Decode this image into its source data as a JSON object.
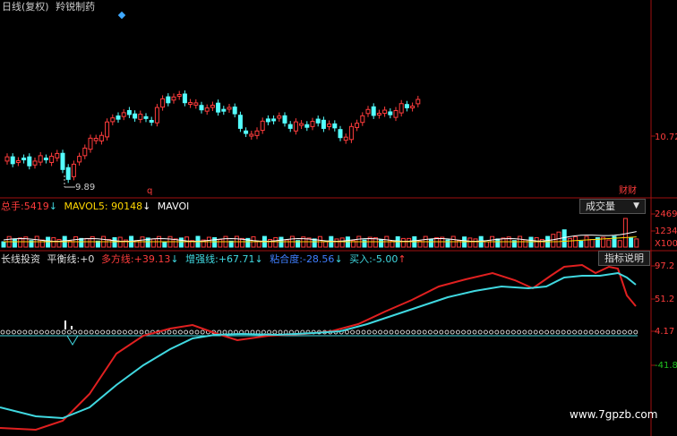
{
  "header": {
    "chart_label": "日线(复权)",
    "stock_name": "羚锐制药"
  },
  "price_panel": {
    "right_label": "10.72",
    "low_annotation": "9.89",
    "marker_q": "q",
    "tag_text": "财财"
  },
  "volume_panel": {
    "total_label": "总手:",
    "total_value": "5419",
    "mavol5_label": "MAVOL5:",
    "mavol5_value": "90148",
    "mavol10_label": "MAVOl",
    "tab_label": "成交量",
    "axis_top": "2469",
    "axis_mid": "1234",
    "axis_unit": "X100"
  },
  "indicator_panel": {
    "name": "长线投资",
    "balance_label": "平衡线:",
    "balance_value": "+0",
    "bull_label": "多方线:",
    "bull_value": "+39.13",
    "strength_label": "增强线:",
    "strength_value": "+67.71",
    "cohesion_label": "粘合度:",
    "cohesion_value": "-28.56",
    "buy_label": "买入:",
    "buy_value": "-5.00",
    "help_button": "指标说明",
    "axis_1": "97.2",
    "axis_2": "51.2",
    "axis_3": "4.17",
    "axis_4": "-41.8"
  },
  "watermark": "www.7gpzb.com",
  "colors": {
    "up": "#ff3c3c",
    "down": "#54ffff",
    "bull_line": "#e02020",
    "strength_line": "#40d8e0",
    "yellow": "#ffd700"
  }
}
